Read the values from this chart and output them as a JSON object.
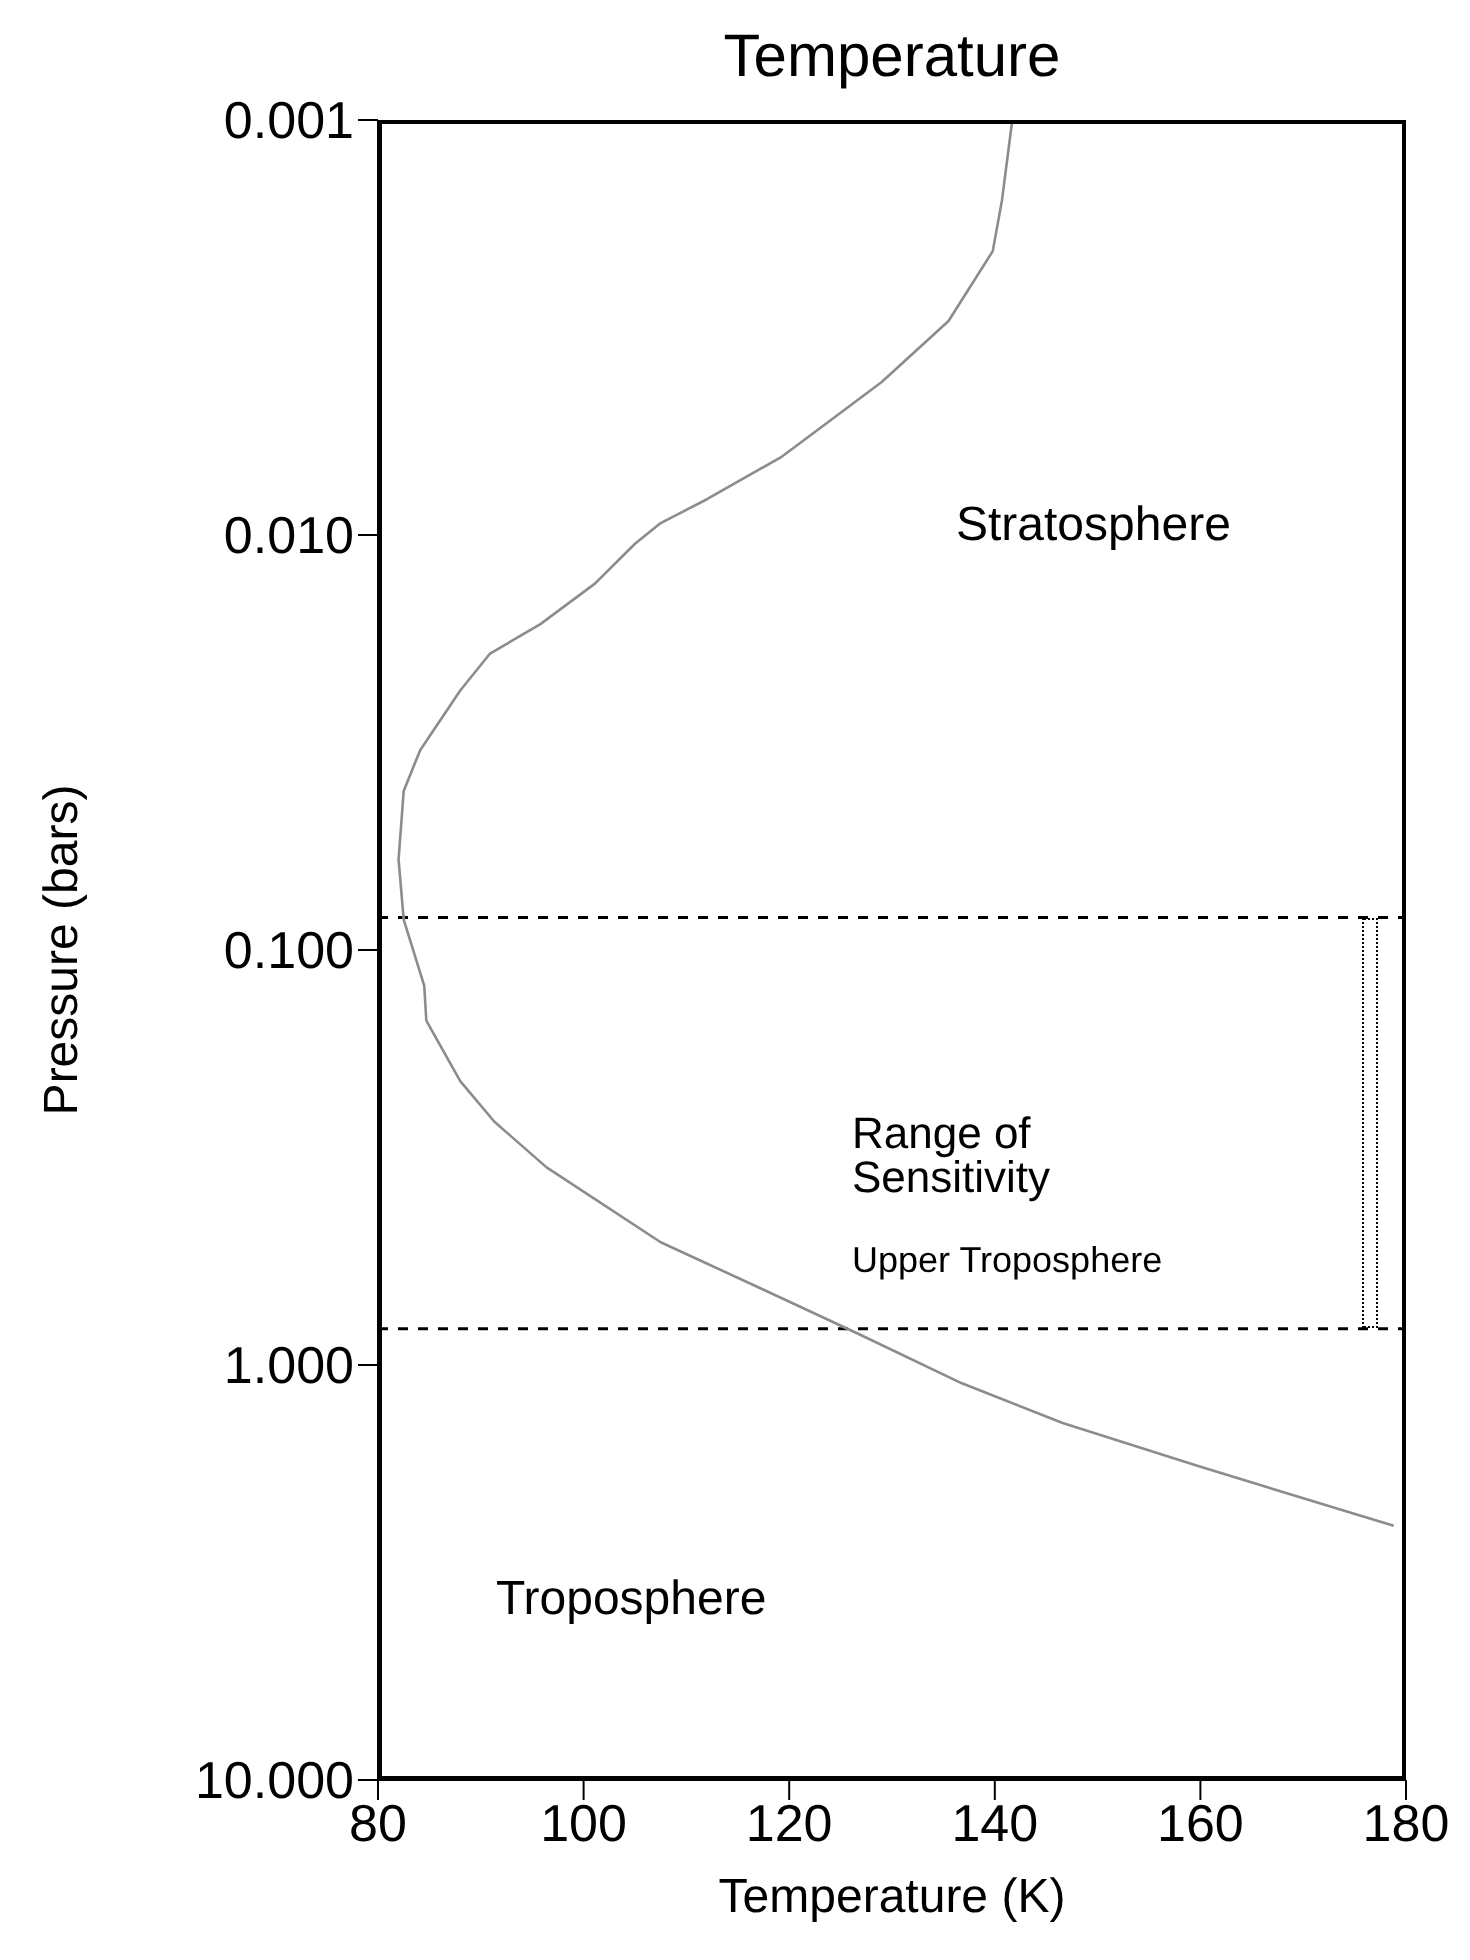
{
  "chart_data": {
    "type": "line",
    "title": "Temperature",
    "xlabel": "Temperature (K)",
    "ylabel": "Pressure (bars)",
    "log": "y",
    "xlim": [
      80,
      180
    ],
    "xticks": [
      80,
      100,
      120,
      140,
      160,
      180
    ],
    "ylim": [
      10,
      0.001
    ],
    "yticks": [
      {
        "value": 0.001,
        "label": "0.001"
      },
      {
        "value": 0.01,
        "label": "0.010"
      },
      {
        "value": 0.1,
        "label": "0.100"
      },
      {
        "value": 1,
        "label": "1.000"
      },
      {
        "value": 10,
        "label": "10.000"
      }
    ],
    "grid": false,
    "marker": "none",
    "series": [
      {
        "color": "#8c8c8c",
        "line_style": "solid",
        "x": [
          141.7,
          140.7,
          139.8,
          135.5,
          129,
          123.8,
          119.3,
          112,
          107.5,
          105,
          101.1,
          95.8,
          90.9,
          88,
          84.1,
          82.5,
          82,
          82.5,
          84.5,
          84.7,
          88,
          91.3,
          96.4,
          107.5,
          117.3,
          126.5,
          136.8,
          146.6,
          159.7,
          178.8
        ],
        "values": [
          0.001,
          0.00156,
          0.00207,
          0.00305,
          0.00428,
          0.00534,
          0.00647,
          0.0082,
          0.00936,
          0.0105,
          0.0131,
          0.0164,
          0.0193,
          0.0237,
          0.033,
          0.0414,
          0.0605,
          0.0845,
          0.122,
          0.148,
          0.207,
          0.259,
          0.334,
          0.506,
          0.655,
          0.836,
          1.107,
          1.38,
          1.75,
          2.44
        ]
      }
    ],
    "ref_lines": [
      {
        "axis": "y",
        "value": 0.0835,
        "line_style": "dashed",
        "color": "#000000"
      },
      {
        "axis": "y",
        "value": 0.818,
        "line_style": "dashed",
        "color": "#000000"
      }
    ],
    "annotations": [
      "Stratosphere",
      "Range of Sensitivity",
      "Upper Troposphere",
      "Troposphere"
    ]
  }
}
